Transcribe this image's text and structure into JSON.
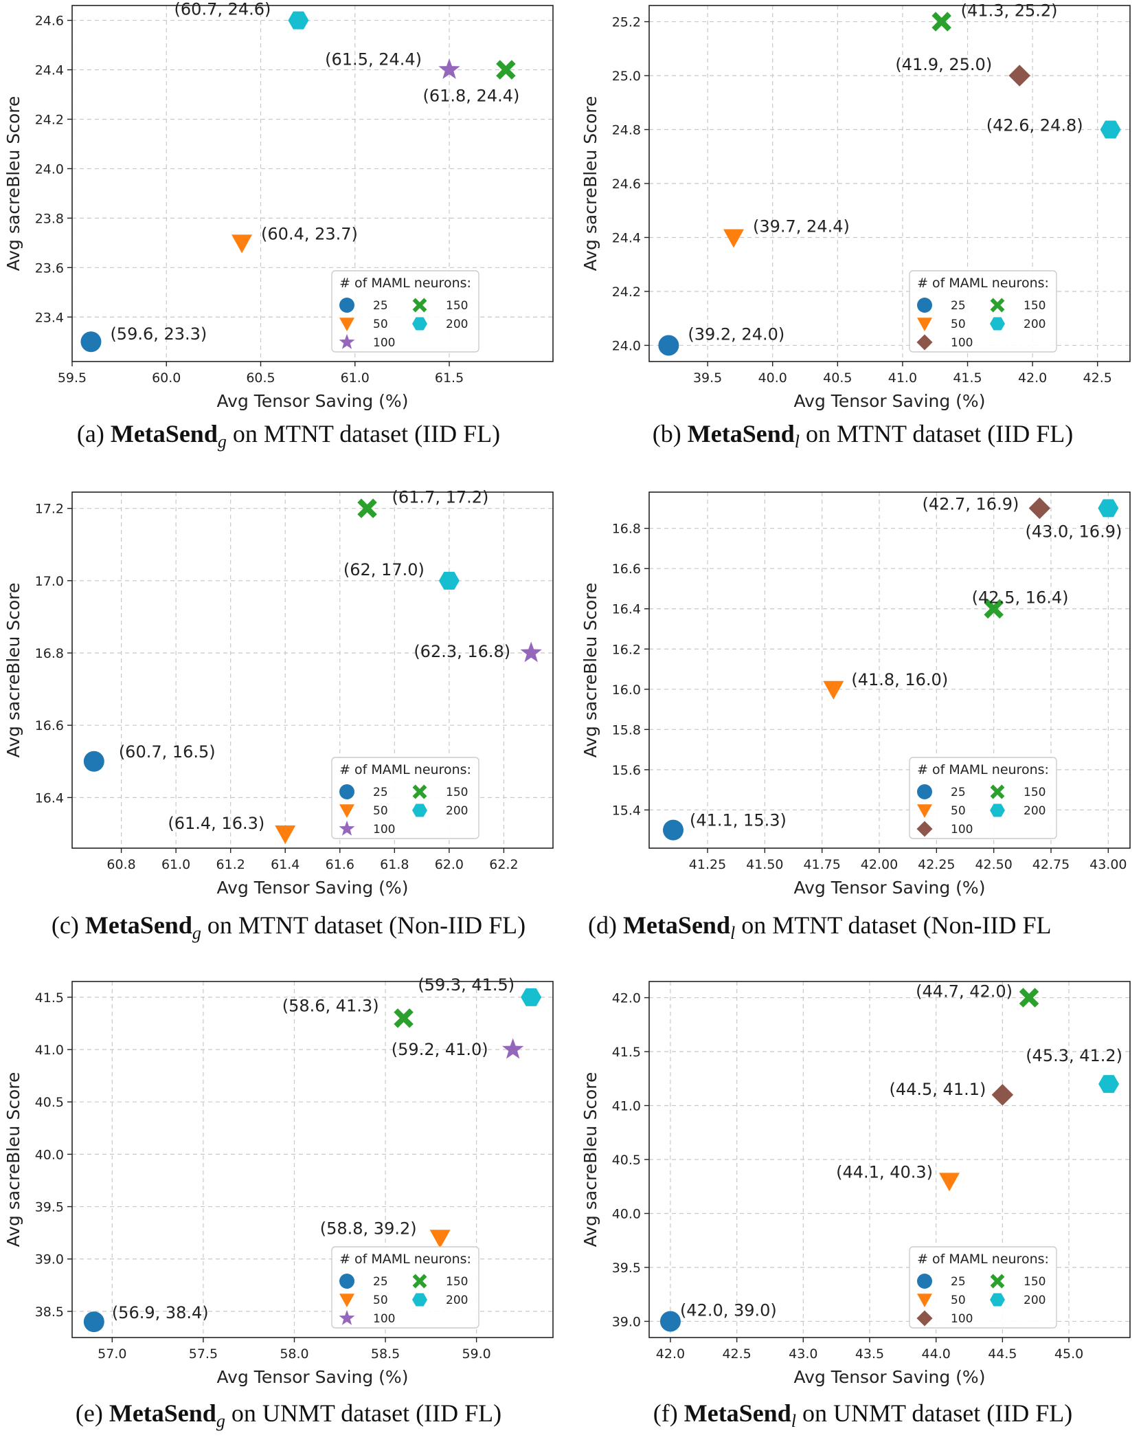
{
  "figure": {
    "legend_title": "# of MAML neurons:",
    "legend_entries": [
      {
        "label": "25",
        "marker": "circle",
        "color": "#1f77b4"
      },
      {
        "label": "50",
        "marker": "triangle-down",
        "color": "#ff7f0e"
      },
      {
        "label": "100",
        "marker": "star",
        "color": "#9467bd"
      },
      {
        "label": "150",
        "marker": "x-cross",
        "color": "#2ca02c"
      },
      {
        "label": "200",
        "marker": "hexagon",
        "color": "#17becf"
      }
    ],
    "alt_100": {
      "label": "100",
      "marker": "diamond",
      "color": "#8c564b"
    }
  },
  "chart_data": [
    {
      "type": "scatter",
      "caption_prefix": "(a)",
      "caption_name": "MetaSend",
      "caption_sub": "g",
      "caption_rest": "on MTNT dataset (IID FL)",
      "xlabel": "Avg Tensor Saving (%)",
      "ylabel": "Avg sacreBleu Score",
      "xlim": [
        59.5,
        62.05
      ],
      "ylim": [
        23.22,
        24.66
      ],
      "xticks": [
        "59.5",
        "60.0",
        "60.5",
        "61.0",
        "61.5"
      ],
      "yticks": [
        "23.4",
        "23.6",
        "23.8",
        "24.0",
        "24.2",
        "24.4",
        "24.6"
      ],
      "points": [
        {
          "neurons": "25",
          "x": 59.6,
          "y": 23.3,
          "label": "(59.6, 23.3)"
        },
        {
          "neurons": "50",
          "x": 60.4,
          "y": 23.7,
          "label": "(60.4, 23.7)"
        },
        {
          "neurons": "100",
          "x": 61.5,
          "y": 24.4,
          "label": "(61.5, 24.4)"
        },
        {
          "neurons": "150",
          "x": 61.8,
          "y": 24.4,
          "label": "(61.8, 24.4)"
        },
        {
          "neurons": "200",
          "x": 60.7,
          "y": 24.6,
          "label": "(60.7, 24.6)"
        }
      ]
    },
    {
      "type": "scatter",
      "caption_prefix": "(b)",
      "caption_name": "MetaSend",
      "caption_sub": "l",
      "caption_rest": "on MTNT dataset (IID FL)",
      "xlabel": "Avg Tensor Saving (%)",
      "ylabel": "Avg sacreBleu Score",
      "xlim": [
        39.05,
        42.75
      ],
      "ylim": [
        23.94,
        25.26
      ],
      "xticks": [
        "39.5",
        "40.0",
        "40.5",
        "41.0",
        "41.5",
        "42.0",
        "42.5"
      ],
      "yticks": [
        "24.0",
        "24.2",
        "24.4",
        "24.6",
        "24.8",
        "25.0",
        "25.2"
      ],
      "points": [
        {
          "neurons": "25",
          "x": 39.2,
          "y": 24.0,
          "label": "(39.2, 24.0)"
        },
        {
          "neurons": "50",
          "x": 39.7,
          "y": 24.4,
          "label": "(39.7, 24.4)"
        },
        {
          "neurons": "100",
          "x": 41.9,
          "y": 25.0,
          "label": "(41.9, 25.0)"
        },
        {
          "neurons": "150",
          "x": 41.3,
          "y": 25.2,
          "label": "(41.3, 25.2)"
        },
        {
          "neurons": "200",
          "x": 42.6,
          "y": 24.8,
          "label": "(42.6, 24.8)"
        }
      ]
    },
    {
      "type": "scatter",
      "caption_prefix": "(c)",
      "caption_name": "MetaSend",
      "caption_sub": "g",
      "caption_rest": "on MTNT dataset (Non-IID FL)",
      "xlabel": "Avg Tensor Saving (%)",
      "ylabel": "Avg sacreBleu Score",
      "xlim": [
        60.62,
        62.38
      ],
      "ylim": [
        16.26,
        17.245
      ],
      "xticks": [
        "60.8",
        "61.0",
        "61.2",
        "61.4",
        "61.6",
        "61.8",
        "62.0",
        "62.2"
      ],
      "yticks": [
        "16.4",
        "16.6",
        "16.8",
        "17.0",
        "17.2"
      ],
      "points": [
        {
          "neurons": "25",
          "x": 60.7,
          "y": 16.5,
          "label": "(60.7, 16.5)"
        },
        {
          "neurons": "50",
          "x": 61.4,
          "y": 16.3,
          "label": "(61.4, 16.3)"
        },
        {
          "neurons": "100",
          "x": 62.3,
          "y": 16.8,
          "label": "(62.3, 16.8)"
        },
        {
          "neurons": "150",
          "x": 61.7,
          "y": 17.2,
          "label": "(61.7, 17.2)"
        },
        {
          "neurons": "200",
          "x": 62.0,
          "y": 17.0,
          "label": "(62, 17.0)"
        }
      ]
    },
    {
      "type": "scatter",
      "caption_prefix": "(d)",
      "caption_name": "MetaSend",
      "caption_sub": "l",
      "caption_rest": "on MTNT dataset (Non-IID FL",
      "xlabel": "Avg Tensor Saving (%)",
      "ylabel": "Avg sacreBleu Score",
      "xlim": [
        40.995,
        43.095
      ],
      "ylim": [
        15.21,
        16.98
      ],
      "xticks": [
        "41.25",
        "41.50",
        "41.75",
        "42.00",
        "42.25",
        "42.50",
        "42.75",
        "43.00"
      ],
      "yticks": [
        "15.4",
        "15.6",
        "15.8",
        "16.0",
        "16.2",
        "16.4",
        "16.6",
        "16.8"
      ],
      "points": [
        {
          "neurons": "25",
          "x": 41.1,
          "y": 15.3,
          "label": "(41.1, 15.3)"
        },
        {
          "neurons": "50",
          "x": 41.8,
          "y": 16.0,
          "label": "(41.8, 16.0)"
        },
        {
          "neurons": "100",
          "x": 42.7,
          "y": 16.9,
          "label": "(42.7, 16.9)"
        },
        {
          "neurons": "150",
          "x": 42.5,
          "y": 16.4,
          "label": "(42.5, 16.4)"
        },
        {
          "neurons": "200",
          "x": 43.0,
          "y": 16.9,
          "label": "(43.0, 16.9)"
        }
      ]
    },
    {
      "type": "scatter",
      "caption_prefix": "(e)",
      "caption_name": "MetaSend",
      "caption_sub": "g",
      "caption_rest": "on UNMT dataset (IID FL)",
      "xlabel": "Avg Tensor Saving (%)",
      "ylabel": "Avg sacreBleu Score",
      "xlim": [
        56.78,
        59.42
      ],
      "ylim": [
        38.25,
        41.65
      ],
      "xticks": [
        "57.0",
        "57.5",
        "58.0",
        "58.5",
        "59.0"
      ],
      "yticks": [
        "38.5",
        "39.0",
        "39.5",
        "40.0",
        "40.5",
        "41.0",
        "41.5"
      ],
      "points": [
        {
          "neurons": "25",
          "x": 56.9,
          "y": 38.4,
          "label": "(56.9, 38.4)"
        },
        {
          "neurons": "50",
          "x": 58.8,
          "y": 39.2,
          "label": "(58.8, 39.2)"
        },
        {
          "neurons": "100",
          "x": 59.2,
          "y": 41.0,
          "label": "(59.2, 41.0)"
        },
        {
          "neurons": "150",
          "x": 58.6,
          "y": 41.3,
          "label": "(58.6, 41.3)"
        },
        {
          "neurons": "200",
          "x": 59.3,
          "y": 41.5,
          "label": "(59.3, 41.5)"
        }
      ]
    },
    {
      "type": "scatter",
      "caption_prefix": "(f)",
      "caption_name": "MetaSend",
      "caption_sub": "l",
      "caption_rest": "on UNMT dataset (IID FL)",
      "xlabel": "Avg Tensor Saving (%)",
      "ylabel": "Avg sacreBleu Score",
      "xlim": [
        41.84,
        45.46
      ],
      "ylim": [
        38.85,
        42.15
      ],
      "xticks": [
        "42.0",
        "42.5",
        "43.0",
        "43.5",
        "44.0",
        "44.5",
        "45.0"
      ],
      "yticks": [
        "39.0",
        "39.5",
        "40.0",
        "40.5",
        "41.0",
        "41.5",
        "42.0"
      ],
      "points": [
        {
          "neurons": "25",
          "x": 42.0,
          "y": 39.0,
          "label": "(42.0, 39.0)"
        },
        {
          "neurons": "50",
          "x": 44.1,
          "y": 40.3,
          "label": "(44.1, 40.3)"
        },
        {
          "neurons": "100",
          "x": 44.5,
          "y": 41.1,
          "label": "(44.5, 41.1)"
        },
        {
          "neurons": "150",
          "x": 44.7,
          "y": 42.0,
          "label": "(44.7, 42.0)"
        },
        {
          "neurons": "200",
          "x": 45.3,
          "y": 41.2,
          "label": "(45.3, 41.2)"
        }
      ]
    }
  ]
}
